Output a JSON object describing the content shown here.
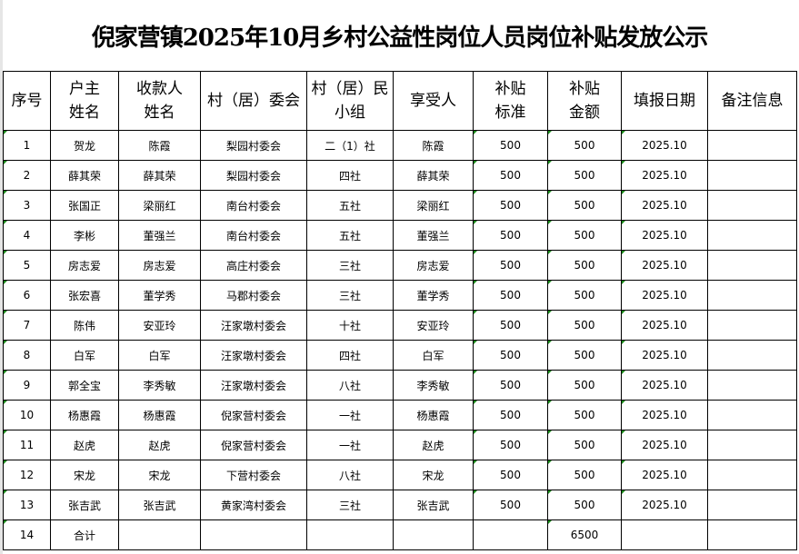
{
  "title": "倪家营镇2025年10月乡村公益性岗位人员岗位补贴发放公示",
  "headers": [
    "序号",
    "户主\n姓名",
    "收款人\n姓名",
    "村（居）委会",
    "村（居）民\n小组",
    "享受人",
    "补贴\n标准",
    "补贴\n金额",
    "填报日期",
    "备注信息"
  ],
  "rows": [
    [
      "1",
      "贺龙",
      "陈霞",
      "梨园村委会",
      "二（1）社",
      "陈霞",
      "500",
      "500",
      "2025.10",
      ""
    ],
    [
      "2",
      "薛其荣",
      "薛其荣",
      "梨园村委会",
      "四社",
      "薛其荣",
      "500",
      "500",
      "2025.10",
      ""
    ],
    [
      "3",
      "张国正",
      "梁丽红",
      "南台村委会",
      "五社",
      "梁丽红",
      "500",
      "500",
      "2025.10",
      ""
    ],
    [
      "4",
      "李彬",
      "董强兰",
      "南台村委会",
      "五社",
      "董强兰",
      "500",
      "500",
      "2025.10",
      ""
    ],
    [
      "5",
      "房志爱",
      "房志爱",
      "高庄村委会",
      "三社",
      "房志爱",
      "500",
      "500",
      "2025.10",
      ""
    ],
    [
      "6",
      "张宏喜",
      "董学秀",
      "马郡村委会",
      "三社",
      "董学秀",
      "500",
      "500",
      "2025.10",
      ""
    ],
    [
      "7",
      "陈伟",
      "安亚玲",
      "汪家墩村委会",
      "十社",
      "安亚玲",
      "500",
      "500",
      "2025.10",
      ""
    ],
    [
      "8",
      "白军",
      "白军",
      "汪家墩村委会",
      "四社",
      "白军",
      "500",
      "500",
      "2025.10",
      ""
    ],
    [
      "9",
      "郭全宝",
      "李秀敏",
      "汪家墩村委会",
      "八社",
      "李秀敏",
      "500",
      "500",
      "2025.10",
      ""
    ],
    [
      "10",
      "杨惠霞",
      "杨惠霞",
      "倪家营村委会",
      "一社",
      "杨惠霞",
      "500",
      "500",
      "2025.10",
      ""
    ],
    [
      "11",
      "赵虎",
      "赵虎",
      "倪家营村委会",
      "一社",
      "赵虎",
      "500",
      "500",
      "2025.10",
      ""
    ],
    [
      "12",
      "宋龙",
      "宋龙",
      "下营村委会",
      "八社",
      "宋龙",
      "500",
      "500",
      "2025.10",
      ""
    ],
    [
      "13",
      "张吉武",
      "张吉武",
      "黄家湾村委会",
      "三社",
      "张吉武",
      "500",
      "500",
      "2025.10",
      ""
    ],
    [
      "14",
      "合计",
      "",
      "",
      "",
      "",
      "",
      "6500",
      "",
      ""
    ]
  ]
}
